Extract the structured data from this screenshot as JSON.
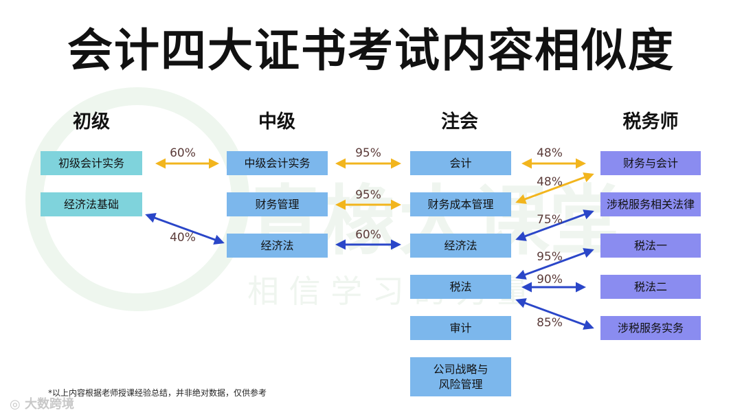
{
  "title": "会计四大证书考试内容相似度",
  "columns": {
    "c1": {
      "title": "初级",
      "items": [
        "初级会计实务",
        "经济法基础"
      ]
    },
    "c2": {
      "title": "中级",
      "items": [
        "中级会计实务",
        "财务管理",
        "经济法"
      ]
    },
    "c3": {
      "title": "注会",
      "items": [
        "会计",
        "财务成本管理",
        "经济法",
        "税法",
        "审计",
        "公司战略与\n风险管理"
      ]
    },
    "c4": {
      "title": "税务师",
      "items": [
        "财务与会计",
        "涉税服务相关法律",
        "税法一",
        "税法二",
        "涉税服务实务"
      ]
    }
  },
  "links": [
    {
      "pct": "60%",
      "color": "#f2b51d"
    },
    {
      "pct": "40%",
      "color": "#2a46c8"
    },
    {
      "pct": "95%",
      "color": "#f2b51d"
    },
    {
      "pct": "95%",
      "color": "#f2b51d"
    },
    {
      "pct": "60%",
      "color": "#2a46c8"
    },
    {
      "pct": "48%",
      "color": "#f2b51d"
    },
    {
      "pct": "48%",
      "color": "#f2b51d"
    },
    {
      "pct": "75%",
      "color": "#2a46c8"
    },
    {
      "pct": "95%",
      "color": "#2a46c8"
    },
    {
      "pct": "90%",
      "color": "#2a46c8"
    },
    {
      "pct": "85%",
      "color": "#2a46c8"
    }
  ],
  "watermark": {
    "main": "青橡大课堂",
    "sub": "相 信 学 习 的 力 量"
  },
  "footnote": "*以上内容根据老师授课经验总结，并非绝对数据，仅供参考",
  "logo": "大数跨境"
}
